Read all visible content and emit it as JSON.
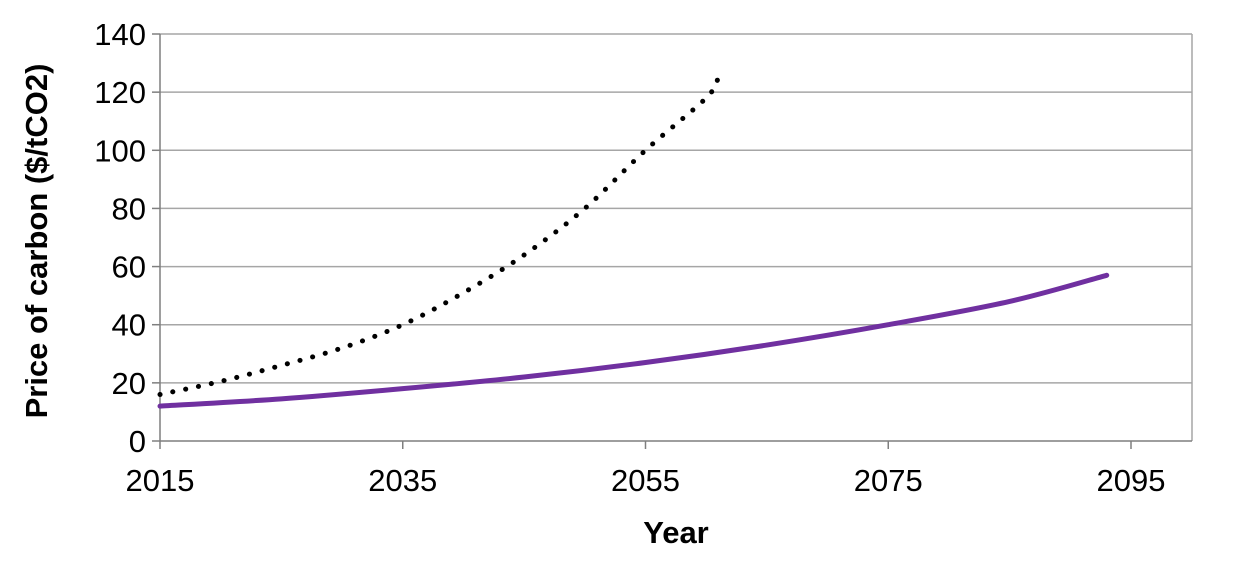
{
  "chart_data": {
    "type": "line",
    "xlabel": "Year",
    "ylabel": "Price of carbon ($/tCO2)",
    "xlim": [
      2015,
      2099
    ],
    "ylim": [
      0,
      140
    ],
    "x_ticks": [
      2015,
      2035,
      2055,
      2075,
      2095
    ],
    "y_ticks": [
      0,
      20,
      40,
      60,
      80,
      100,
      120,
      140
    ],
    "grid": "horizontal",
    "series": [
      {
        "style": "dotted",
        "color": "#000000",
        "x": [
          2015,
          2020,
          2025,
          2030,
          2035,
          2040,
          2045,
          2050,
          2055,
          2060,
          2061
        ],
        "y": [
          16,
          20.5,
          26,
          32,
          40,
          51,
          64,
          80,
          100,
          118,
          125
        ]
      },
      {
        "style": "solid",
        "color": "#7030A0",
        "x": [
          2015,
          2025,
          2035,
          2045,
          2055,
          2065,
          2075,
          2085,
          2093
        ],
        "y": [
          12,
          14.5,
          18,
          22,
          27,
          33,
          40,
          48,
          57
        ]
      }
    ]
  },
  "colors": {
    "grid": "#a6a6a6",
    "axis": "#7f7f7f"
  }
}
